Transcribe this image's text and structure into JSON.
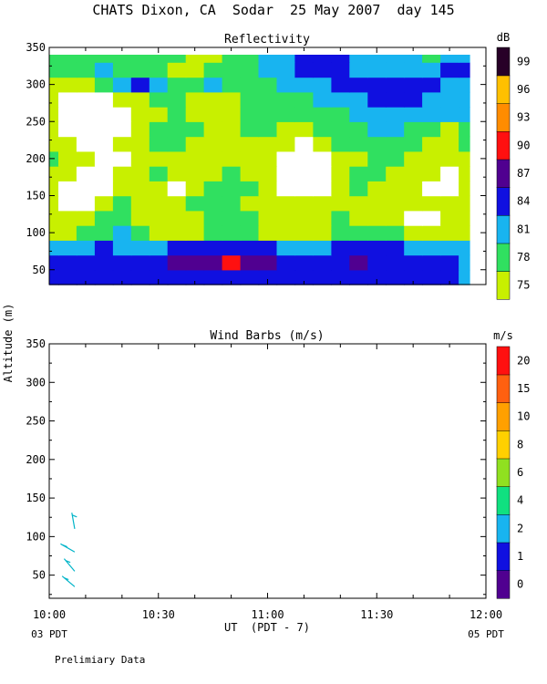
{
  "main_title": "CHATS Dixon, CA  Sodar  25 May 2007  day 145",
  "shared_ylabel": "Altitude (m)",
  "footer_note": "Prelimiary Data",
  "colors": {
    "reflectivity": [
      "#c8f000",
      "#30e060",
      "#18b4f0",
      "#1010e0",
      "#500090",
      "#ff1010",
      "#ff8c00",
      "#ffc000",
      "#280028"
    ],
    "wind": [
      "#500090",
      "#1010e0",
      "#18b4f0",
      "#10e080",
      "#90e020",
      "#ffd000",
      "#ffa000",
      "#ff6010",
      "#ff1010"
    ],
    "barb": "#00b4c8",
    "nodata": "#ffffff"
  },
  "chart_data": [
    {
      "type": "heatmap",
      "title": "Reflectivity",
      "colorbar_label": "dB",
      "colorbar_ticks": [
        "75",
        "78",
        "81",
        "84",
        "87",
        "90",
        "93",
        "96",
        "99"
      ],
      "levels": [
        75,
        78,
        81,
        84,
        87,
        90,
        93,
        96,
        99
      ],
      "xlim": [
        "10:00",
        "12:00"
      ],
      "ylim": [
        30,
        350
      ],
      "ytick_labels": [
        "50",
        "100",
        "150",
        "200",
        "250",
        "300",
        "350"
      ],
      "x_minutes": [
        0,
        5,
        10,
        15,
        20,
        25,
        30,
        35,
        40,
        45,
        50,
        55,
        60,
        65,
        70,
        75,
        80,
        85,
        90,
        95,
        100,
        105,
        110,
        115
      ],
      "y_altitude": [
        40,
        60,
        80,
        100,
        120,
        140,
        160,
        180,
        200,
        220,
        240,
        260,
        280,
        300,
        320,
        340
      ],
      "z_db": [
        [
          84,
          84,
          84,
          84,
          84,
          84,
          85,
          85,
          85,
          85,
          85,
          85,
          85,
          84,
          84,
          84,
          84,
          84,
          84,
          84,
          84,
          84,
          84,
          82
        ],
        [
          86,
          86,
          85,
          84,
          84,
          84,
          86,
          87,
          87,
          88,
          91,
          87,
          87,
          85,
          84,
          84,
          86,
          87,
          85,
          84,
          84,
          84,
          84,
          82
        ],
        [
          81,
          81,
          82,
          84,
          83,
          82,
          83,
          84,
          84,
          84,
          84,
          84,
          84,
          83,
          82,
          83,
          84,
          84,
          84,
          84,
          83,
          82,
          81,
          81
        ],
        [
          77,
          76,
          78,
          80,
          81,
          79,
          77,
          77,
          76,
          78,
          79,
          78,
          77,
          77,
          76,
          76,
          78,
          79,
          80,
          79,
          77,
          76,
          76,
          77
        ],
        [
          76,
          75,
          76,
          78,
          79,
          77,
          76,
          75,
          76,
          78,
          79,
          78,
          77,
          76,
          76,
          77,
          78,
          77,
          76,
          75,
          null,
          null,
          75,
          77
        ],
        [
          75,
          null,
          null,
          77,
          78,
          76,
          75,
          76,
          78,
          79,
          78,
          77,
          76,
          75,
          75,
          76,
          76,
          75,
          76,
          77,
          77,
          76,
          76,
          77
        ],
        [
          75,
          null,
          null,
          null,
          76,
          77,
          76,
          null,
          77,
          78,
          79,
          78,
          76,
          null,
          null,
          null,
          76,
          78,
          77,
          76,
          75,
          null,
          null,
          76
        ],
        [
          77,
          75,
          null,
          null,
          75,
          77,
          78,
          76,
          76,
          77,
          78,
          77,
          75,
          null,
          null,
          null,
          77,
          78,
          78,
          77,
          76,
          75,
          null,
          76
        ],
        [
          78,
          76,
          75,
          null,
          null,
          76,
          77,
          77,
          76,
          76,
          77,
          76,
          75,
          null,
          null,
          null,
          76,
          77,
          78,
          79,
          77,
          76,
          76,
          77
        ],
        [
          76,
          75,
          null,
          null,
          75,
          77,
          78,
          79,
          77,
          75,
          76,
          77,
          76,
          75,
          null,
          76,
          78,
          78,
          79,
          80,
          78,
          76,
          75,
          78
        ],
        [
          75,
          null,
          null,
          null,
          null,
          76,
          78,
          80,
          79,
          77,
          76,
          78,
          78,
          77,
          76,
          78,
          79,
          80,
          81,
          81,
          80,
          78,
          77,
          80
        ],
        [
          75,
          null,
          null,
          null,
          null,
          75,
          76,
          78,
          77,
          76,
          75,
          78,
          79,
          78,
          78,
          79,
          80,
          81,
          82,
          82,
          82,
          81,
          81,
          82
        ],
        [
          76,
          null,
          null,
          null,
          75,
          77,
          79,
          79,
          77,
          75,
          77,
          78,
          79,
          79,
          80,
          81,
          82,
          83,
          84,
          84,
          84,
          83,
          82,
          82
        ],
        [
          77,
          75,
          76,
          80,
          83,
          86,
          82,
          80,
          80,
          81,
          80,
          79,
          80,
          81,
          82,
          83,
          84,
          85,
          84,
          84,
          85,
          84,
          83,
          83
        ],
        [
          78,
          78,
          79,
          81,
          80,
          79,
          78,
          77,
          76,
          78,
          79,
          80,
          82,
          83,
          84,
          86,
          84,
          83,
          83,
          82,
          82,
          83,
          84,
          85
        ],
        [
          80,
          80,
          80,
          79,
          79,
          78,
          79,
          78,
          76,
          77,
          79,
          80,
          81,
          82,
          84,
          85,
          84,
          83,
          82,
          82,
          81,
          80,
          81,
          82
        ]
      ]
    },
    {
      "type": "scatter",
      "title": "Wind Barbs (m/s)",
      "colorbar_label": "m/s",
      "colorbar_ticks": [
        "0",
        "1",
        "2",
        "4",
        "6",
        "8",
        "10",
        "15",
        "20"
      ],
      "xlim": [
        "10:00",
        "12:00"
      ],
      "ylim": [
        20,
        350
      ],
      "ytick_labels": [
        "50",
        "100",
        "150",
        "200",
        "250",
        "300",
        "350"
      ],
      "xtick_labels": [
        "10:00",
        "10:30",
        "11:00",
        "11:30",
        "12:00"
      ],
      "xtick_sub_left": "03 PDT",
      "xtick_sub_right": "05 PDT",
      "xlabel": "UT  (PDT - 7)",
      "barbs": [
        {
          "minute": 7,
          "altitude": 35,
          "speed": 2.5,
          "direction": 310
        },
        {
          "minute": 7,
          "altitude": 55,
          "speed": 2.5,
          "direction": 320
        },
        {
          "minute": 7,
          "altitude": 80,
          "speed": 2.5,
          "direction": 300
        },
        {
          "minute": 7,
          "altitude": 110,
          "speed": 2.5,
          "direction": 350
        }
      ]
    }
  ]
}
